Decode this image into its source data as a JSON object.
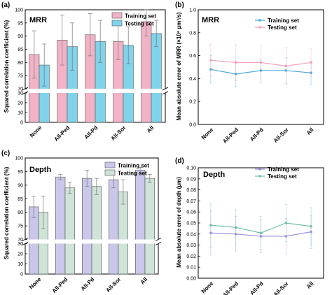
{
  "chart_data": [
    {
      "panel": "(a)",
      "type": "bar",
      "title": "MRR",
      "xlabel": "",
      "ylabel": "Squared correlation coefficient (%)",
      "categories": [
        "None",
        "All-Ped",
        "All-Pd",
        "All-Sor",
        "All"
      ],
      "axis_break": [
        30,
        70
      ],
      "ylim_lower": [
        0,
        30
      ],
      "ylim_upper": [
        70,
        100
      ],
      "yticks_lower": [
        0,
        10,
        20,
        30
      ],
      "yticks_upper": [
        70,
        75,
        80,
        85,
        90,
        95,
        100
      ],
      "legend_position": "top-right",
      "series": [
        {
          "name": "Training set",
          "color": "#f2b3c6",
          "values": [
            83,
            88.5,
            90.5,
            88,
            95.5
          ],
          "errors": [
            9,
            9.5,
            8,
            7,
            5.5
          ]
        },
        {
          "name": "Testing set",
          "color": "#7fd3ea",
          "values": [
            79,
            86,
            88,
            86.5,
            91
          ],
          "errors": [
            8,
            9,
            8,
            7,
            5
          ]
        }
      ]
    },
    {
      "panel": "(b)",
      "type": "line",
      "title": "MRR",
      "xlabel": "",
      "ylabel": "Mean absolute error of MRR (×10⁶ µm³/s)",
      "categories": [
        "None",
        "All-Ped",
        "All-Pd",
        "All-Sor",
        "All"
      ],
      "ylim": [
        0,
        1
      ],
      "yticks": [
        0.0,
        0.2,
        0.4,
        0.6,
        0.8,
        1.0
      ],
      "legend_position": "top-right",
      "series": [
        {
          "name": "Training set",
          "color": "#4aa8d8",
          "values": [
            0.48,
            0.44,
            0.47,
            0.47,
            0.45
          ],
          "errors": [
            0.12,
            0.11,
            0.1,
            0.11,
            0.1
          ]
        },
        {
          "name": "Testing set",
          "color": "#f2a2bd",
          "values": [
            0.56,
            0.54,
            0.54,
            0.51,
            0.54
          ],
          "errors": [
            0.14,
            0.16,
            0.15,
            0.16,
            0.12
          ]
        }
      ]
    },
    {
      "panel": "(c)",
      "type": "bar",
      "title": "Depth",
      "xlabel": "",
      "ylabel": "Squared correlation coefficient (%)",
      "categories": [
        "None",
        "All-Ped",
        "All-Pd",
        "All-Sor",
        "All"
      ],
      "axis_break": [
        30,
        70
      ],
      "ylim_lower": [
        0,
        30
      ],
      "ylim_upper": [
        70,
        100
      ],
      "yticks_lower": [
        0,
        10,
        20,
        30
      ],
      "yticks_upper": [
        70,
        75,
        80,
        85,
        90,
        95,
        100
      ],
      "legend_position": "top-right",
      "series": [
        {
          "name": "Training set",
          "color": "#c9c7ea",
          "values": [
            82,
            93,
            92.5,
            92,
            95.5
          ],
          "errors": [
            4,
            1,
            3,
            3,
            1
          ]
        },
        {
          "name": "Testing set",
          "color": "#cfe3d8",
          "values": [
            80,
            89,
            89.5,
            87.5,
            92.5
          ],
          "errors": [
            6,
            2,
            3,
            4.5,
            1.5
          ]
        }
      ]
    },
    {
      "panel": "(d)",
      "type": "line",
      "title": "Depth",
      "xlabel": "",
      "ylabel": "Mean absolute error of depth (µm)",
      "categories": [
        "None",
        "All-Ped",
        "All-Pd",
        "All-Sor",
        "All"
      ],
      "ylim": [
        0,
        0.1
      ],
      "yticks": [
        0.0,
        0.01,
        0.02,
        0.03,
        0.04,
        0.05,
        0.06,
        0.07,
        0.08,
        0.09,
        0.1
      ],
      "legend_position": "top-right",
      "series": [
        {
          "name": "Training set",
          "color": "#9c90e0",
          "values": [
            0.041,
            0.04,
            0.038,
            0.038,
            0.042
          ],
          "errors": [
            0.02,
            0.016,
            0.015,
            0.016,
            0.015
          ]
        },
        {
          "name": "Testing set",
          "color": "#6fc1a8",
          "values": [
            0.048,
            0.046,
            0.041,
            0.05,
            0.047
          ],
          "errors": [
            0.02,
            0.016,
            0.015,
            0.017,
            0.017
          ]
        }
      ]
    }
  ]
}
